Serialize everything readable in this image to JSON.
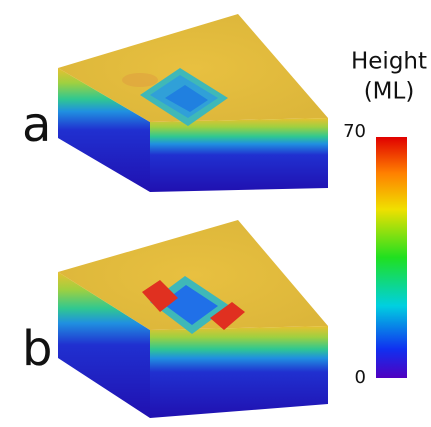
{
  "panels": [
    {
      "label": "a"
    },
    {
      "label": "b"
    }
  ],
  "colorbar": {
    "title_lines": [
      "Height",
      "(ML)"
    ],
    "max_label": "70",
    "min_label": "0"
  }
}
